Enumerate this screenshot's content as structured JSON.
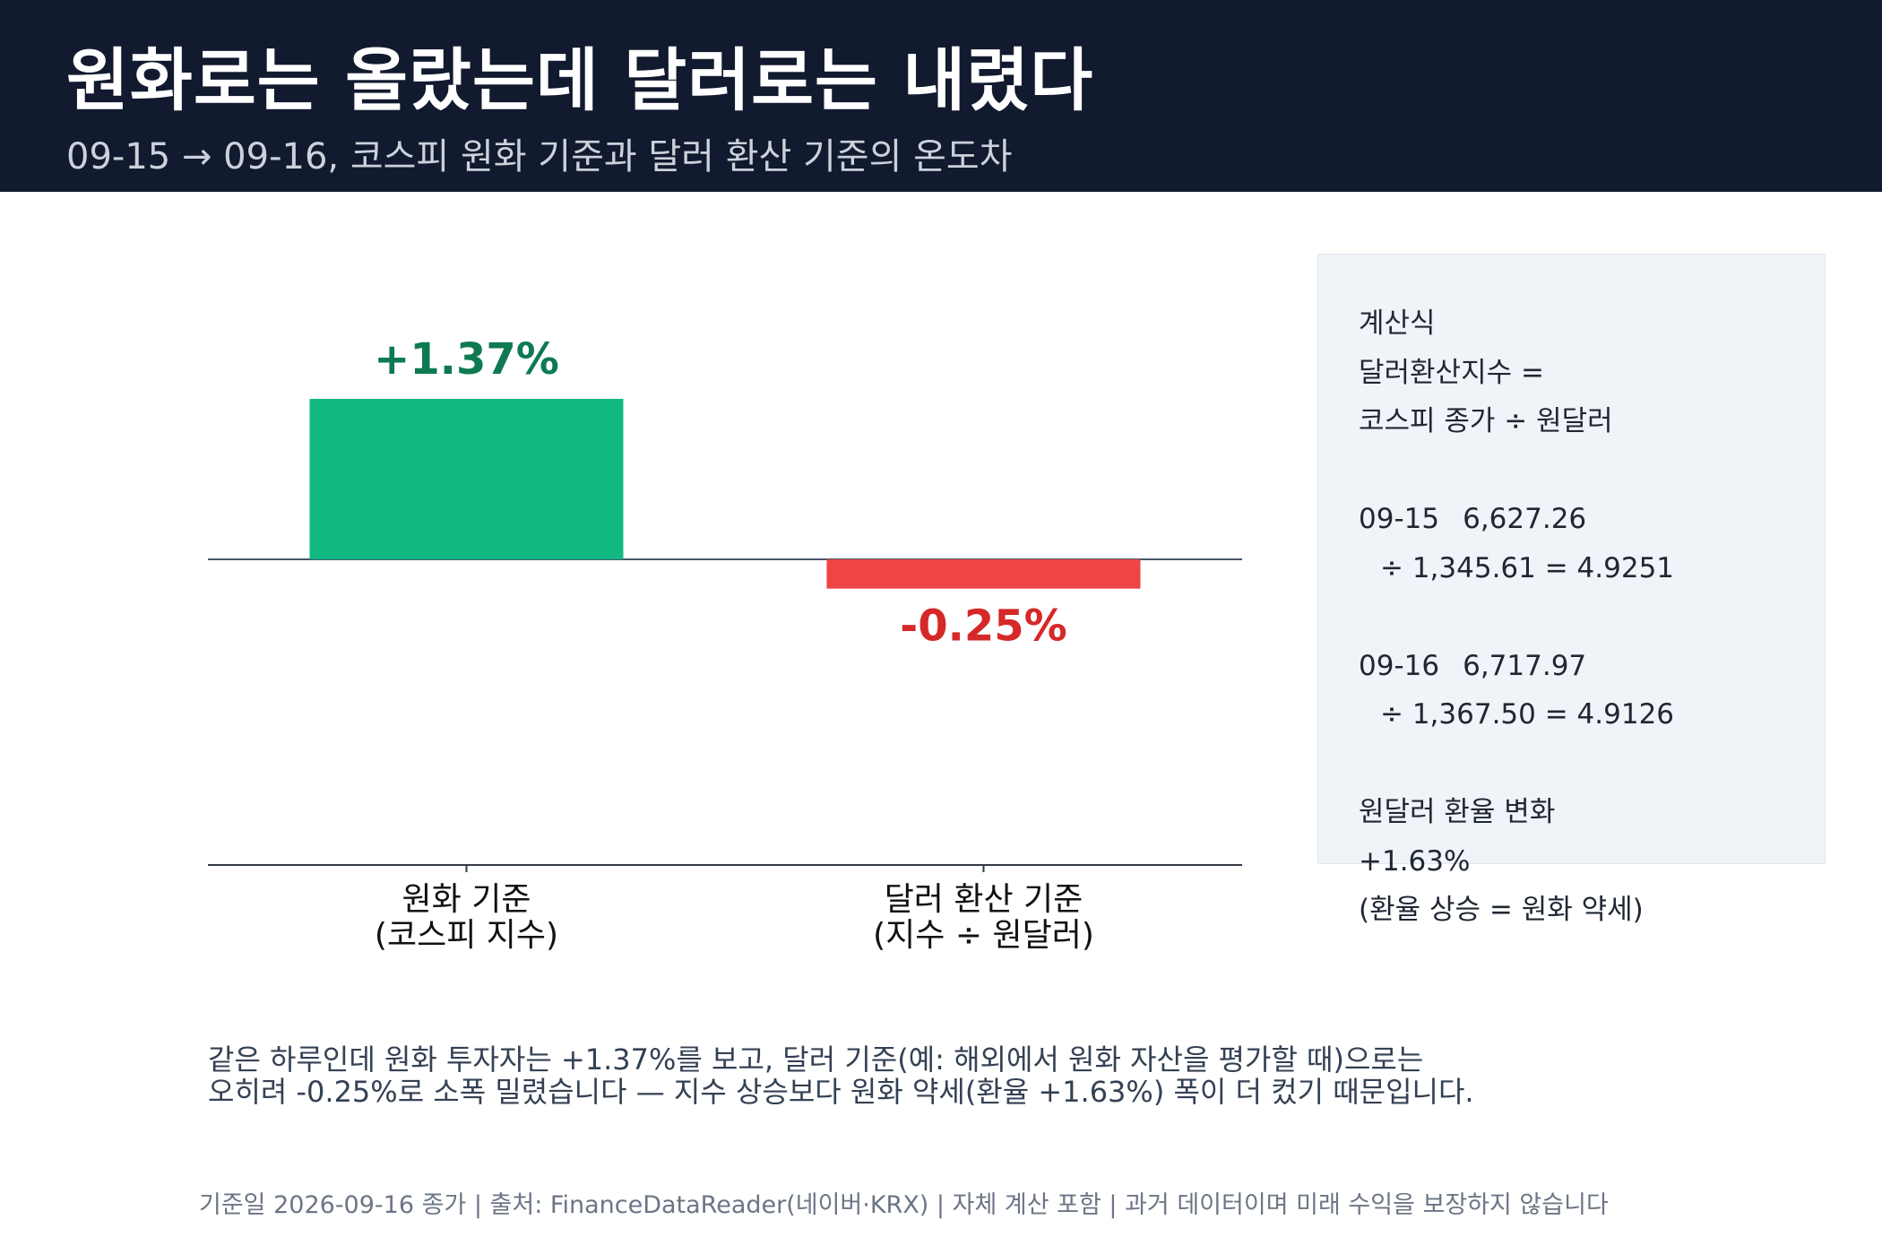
{
  "header": {
    "title": "원화로는 올랐는데 달러로는 내렸다",
    "subtitle": "09-15 → 09-16, 코스피 원화 기준과 달러 환산 기준의 온도차"
  },
  "chart_data": {
    "type": "bar",
    "categories": [
      "원화 기준\n(코스피 지수)",
      "달러 환산 기준\n(지수 ÷ 원달러)"
    ],
    "values": [
      1.37,
      -0.25
    ],
    "value_labels": [
      "+1.37%",
      "-0.25%"
    ],
    "colors": [
      "#12b981",
      "#ef4444"
    ],
    "label_colors": [
      "#0e7a52",
      "#d62828"
    ],
    "ylim": [
      -1.9,
      2.0
    ],
    "title": "",
    "xlabel": "",
    "ylabel": "",
    "grid": false,
    "legend": "none"
  },
  "panel": {
    "heading": "계산식",
    "formula_line1": "달러환산지수 =",
    "formula_line2": "코스피 종가 ÷ 원달러",
    "day1_date": "09-15",
    "day1_index": "6,627.26",
    "day1_calc": "÷ 1,345.61 = 4.9251",
    "day2_date": "09-16",
    "day2_index": "6,717.97",
    "day2_calc": "÷ 1,367.50 = 4.9126",
    "fx_label": "원달러 환율 변화",
    "fx_value": "+1.63%",
    "fx_note": "(환율 상승 = 원화 약세)"
  },
  "note": {
    "line1": "같은 하루인데 원화 투자자는 +1.37%를 보고, 달러 기준(예: 해외에서 원화 자산을 평가할 때)으로는",
    "line2": "오히려 -0.25%로 소폭 밀렸습니다 — 지수 상승보다 원화 약세(환율 +1.63%) 폭이 더 컸기 때문입니다."
  },
  "footer": {
    "text": "기준일 2026-09-16 종가 | 출처: FinanceDataReader(네이버·KRX) | 자체 계산 포함 | 과거 데이터이며 미래 수익을 보장하지 않습니다"
  }
}
